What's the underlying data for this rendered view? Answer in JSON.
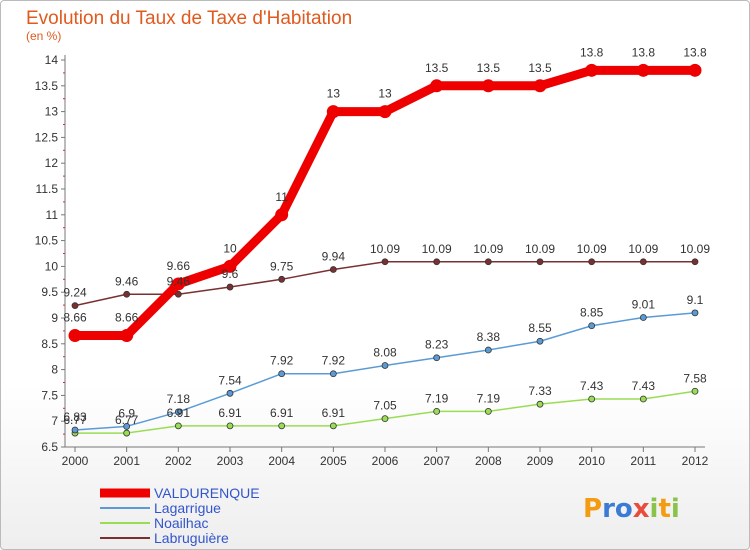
{
  "header": {
    "title": "Evolution du Taux de Taxe d'Habitation",
    "subtitle": "(en %)"
  },
  "logo": {
    "text": "Proxiti"
  },
  "chart_data": {
    "type": "line",
    "title": "Evolution du Taux de Taxe d'Habitation",
    "subtitle": "(en %)",
    "xlabel": "",
    "ylabel": "",
    "x": [
      "2000",
      "2001",
      "2002",
      "2003",
      "2004",
      "2005",
      "2006",
      "2007",
      "2008",
      "2009",
      "2010",
      "2011",
      "2012"
    ],
    "ylim": [
      6.5,
      14
    ],
    "yticks": [
      "6.5",
      "7",
      "7.5",
      "8",
      "8.5",
      "9",
      "9.5",
      "10",
      "10.5",
      "11",
      "11.5",
      "12",
      "12.5",
      "13",
      "13.5",
      "14"
    ],
    "grid": false,
    "legend": "bottom-left",
    "series": [
      {
        "name": "VALDURENQUE",
        "color": "#ee0000",
        "values": [
          8.66,
          8.66,
          9.66,
          10,
          11,
          13,
          13,
          13.5,
          13.5,
          13.5,
          13.8,
          13.8,
          13.8
        ],
        "labels": [
          "8.66",
          "8.66",
          "9.66",
          "10",
          "11",
          "13",
          "13",
          "13.5",
          "13.5",
          "13.5",
          "13.8",
          "13.8",
          "13.8"
        ]
      },
      {
        "name": "Lagarrigue",
        "color": "#5b9bd5",
        "values": [
          6.83,
          6.9,
          7.18,
          7.54,
          7.92,
          7.92,
          8.08,
          8.23,
          8.38,
          8.55,
          8.85,
          9.01,
          9.1
        ],
        "labels": [
          "6.83",
          "6.9",
          "7.18",
          "7.54",
          "7.92",
          "7.92",
          "8.08",
          "8.23",
          "8.38",
          "8.55",
          "8.85",
          "9.01",
          "9.1"
        ]
      },
      {
        "name": "Noailhac",
        "color": "#99dd55",
        "values": [
          6.77,
          6.77,
          6.91,
          6.91,
          6.91,
          6.91,
          7.05,
          7.19,
          7.19,
          7.33,
          7.43,
          7.43,
          7.58
        ],
        "labels": [
          "6.77",
          "6.77",
          "6.91",
          "6.91",
          "6.91",
          "6.91",
          "7.05",
          "7.19",
          "7.19",
          "7.33",
          "7.43",
          "7.43",
          "7.58"
        ]
      },
      {
        "name": "Labruguière",
        "color": "#7a3030",
        "values": [
          9.24,
          9.46,
          9.46,
          9.6,
          9.75,
          9.94,
          10.09,
          10.09,
          10.09,
          10.09,
          10.09,
          10.09,
          10.09
        ],
        "labels": [
          "9.24",
          "9.46",
          "9.46",
          "9.6",
          "9.75",
          "9.94",
          "10.09",
          "10.09",
          "10.09",
          "10.09",
          "10.09",
          "10.09",
          "10.09"
        ]
      }
    ]
  }
}
